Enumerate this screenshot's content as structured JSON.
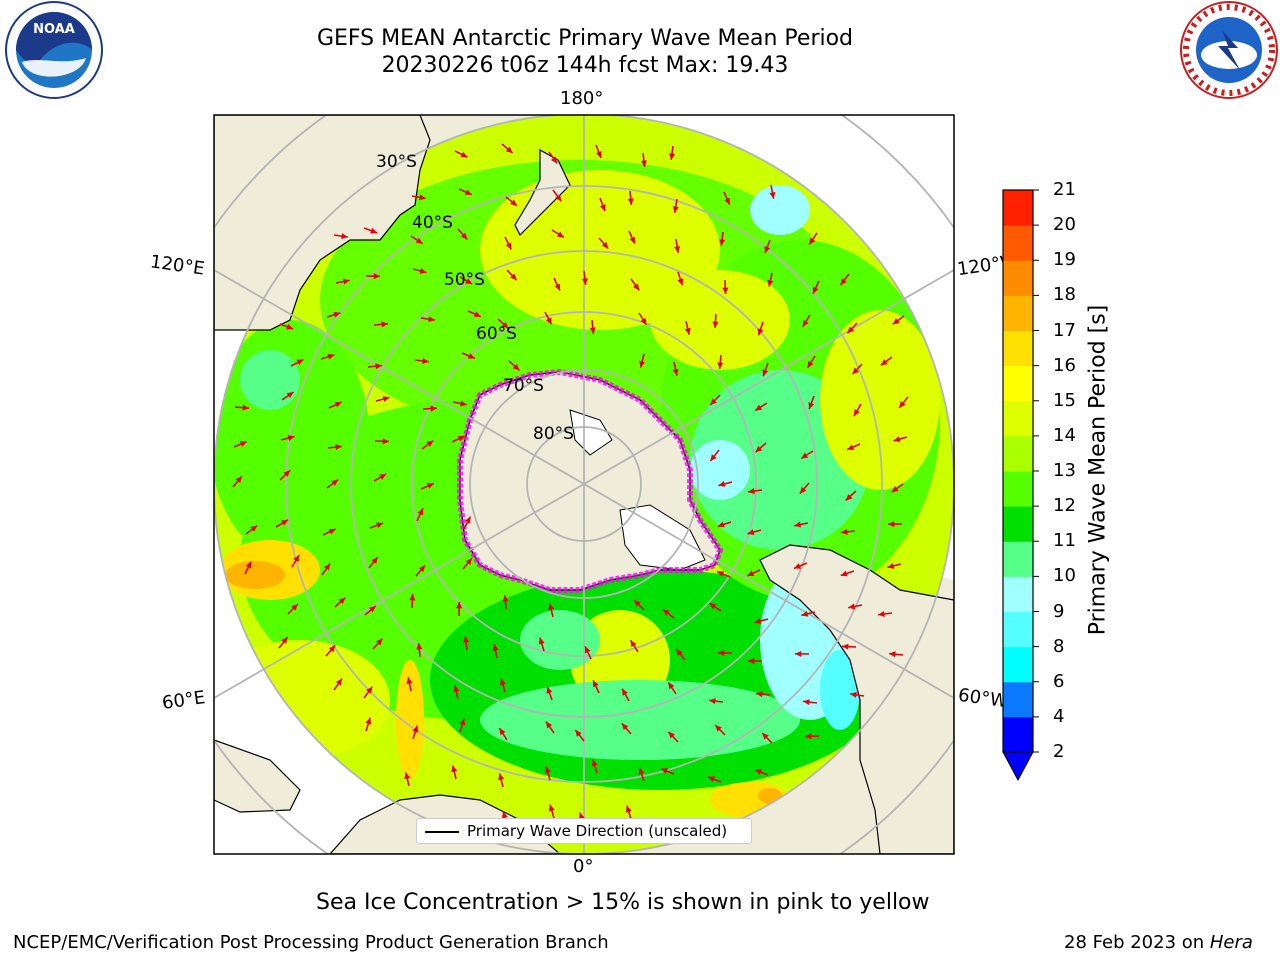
{
  "title": {
    "line1": "GEFS MEAN Antarctic Primary Wave Mean Period",
    "line2": "20230226 t06z 144h fcst   Max: 19.43"
  },
  "map": {
    "longitude_labels": {
      "lon_180": "180°",
      "lon_0": "0°",
      "lon_120e": "120°E",
      "lon_120w": "120°W",
      "lon_60e": "60°E",
      "lon_60w": "60°W"
    },
    "latitude_labels": [
      "30°S",
      "40°S",
      "50°S",
      "60°S",
      "70°S",
      "80°S"
    ],
    "colors": {
      "land": "#efedda",
      "ice": "#ffffff",
      "arrow": "#e8000b",
      "grid": "#b4b4b4",
      "sea_ice_edge": "#ff00ff"
    }
  },
  "legend": {
    "label": "Primary Wave Direction (unscaled)"
  },
  "colorbar": {
    "title": "Primary Wave Mean Period [s]",
    "ticks": [
      "21",
      "20",
      "19",
      "18",
      "17",
      "16",
      "15",
      "14",
      "13",
      "12",
      "11",
      "10",
      "9",
      "8",
      "6",
      "4",
      "2"
    ],
    "colors": [
      "#0000ff",
      "#0a78ff",
      "#00ffff",
      "#55ffff",
      "#a0ffff",
      "#55ff88",
      "#00e000",
      "#55ff00",
      "#aaff00",
      "#ddff00",
      "#ffff00",
      "#ffe000",
      "#ffb400",
      "#ff8c00",
      "#ff5a00",
      "#ff2000",
      "#ff0000"
    ]
  },
  "note": "Sea Ice Concentration > 15% is shown in pink to yellow",
  "footer": {
    "left": "NCEP/EMC/Verification Post Processing Product Generation Branch",
    "right_date": "28 Feb 2023 on ",
    "right_host": "Hera"
  },
  "logos": {
    "left": "NOAA",
    "right": "NATIONAL WEATHER SERVICE"
  }
}
